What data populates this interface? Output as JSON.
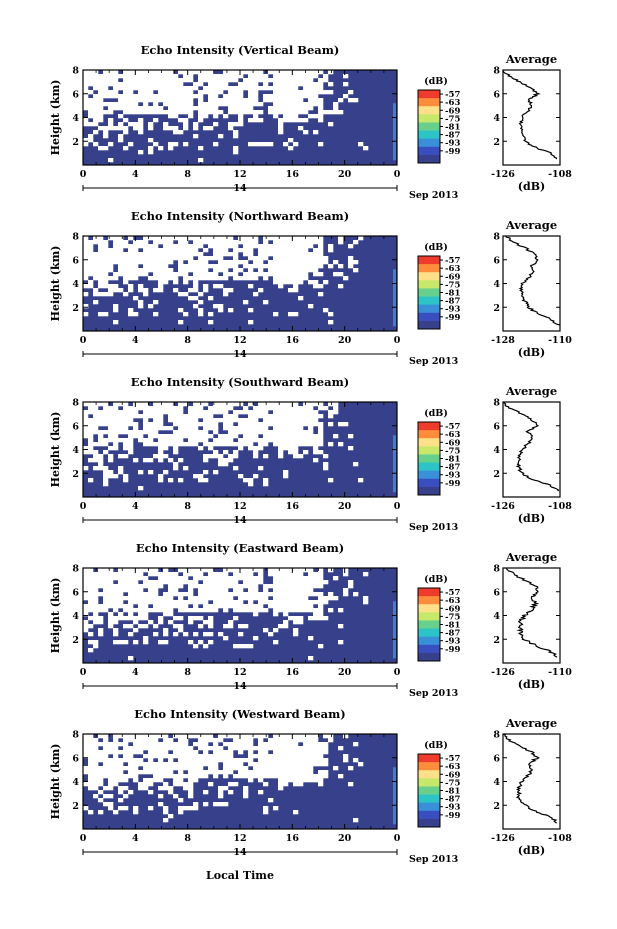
{
  "figure": {
    "x_label": "Local Time",
    "date_label": "Sep 2013",
    "day_label": "14",
    "y_label": "Height (km)",
    "avg_title": "Average",
    "avg_unit": "(dB)",
    "cbar_unit": "(dB)",
    "cbar_ticks": [
      "-57",
      "-63",
      "-69",
      "-75",
      "-81",
      "-87",
      "-93",
      "-99"
    ]
  },
  "chart_data": [
    {
      "type": "heatmap",
      "title": "Echo Intensity (Vertical Beam)",
      "xlabel": "Local Time",
      "ylabel": "Height (km)",
      "x_ticks": [
        "0",
        "4",
        "8",
        "12",
        "16",
        "20",
        "0"
      ],
      "xlim": [
        0,
        24
      ],
      "y_ticks": [
        "2",
        "4",
        "6",
        "8"
      ],
      "ylim": [
        0,
        8
      ],
      "colorbar": {
        "label": "(dB)",
        "ticks": [
          -57,
          -63,
          -69,
          -75,
          -81,
          -87,
          -93,
          -99
        ],
        "range": [
          -99,
          -57
        ]
      },
      "profile": {
        "title": "Average",
        "xlabel": "(dB)",
        "x_ticks": [
          "-126",
          "-108"
        ],
        "xlim": [
          -126,
          -108
        ],
        "heights": [
          0.5,
          1.0,
          1.5,
          2.0,
          2.5,
          3.0,
          3.5,
          4.0,
          4.5,
          5.0,
          5.5,
          6.0,
          6.5,
          7.0,
          7.5,
          8.0
        ],
        "values": [
          -108.5,
          -111,
          -116,
          -119,
          -120,
          -120,
          -120.5,
          -120,
          -118,
          -117,
          -118,
          -115,
          -117,
          -121,
          -124,
          -126
        ]
      }
    },
    {
      "type": "heatmap",
      "title": "Echo Intensity (Northward Beam)",
      "xlabel": "Local Time",
      "ylabel": "Height (km)",
      "x_ticks": [
        "0",
        "4",
        "8",
        "12",
        "16",
        "20",
        "0"
      ],
      "xlim": [
        0,
        24
      ],
      "y_ticks": [
        "2",
        "4",
        "6",
        "8"
      ],
      "ylim": [
        0,
        8
      ],
      "colorbar": {
        "label": "(dB)",
        "ticks": [
          -57,
          -63,
          -69,
          -75,
          -81,
          -87,
          -93,
          -99
        ],
        "range": [
          -99,
          -57
        ]
      },
      "profile": {
        "title": "Average",
        "xlabel": "(dB)",
        "x_ticks": [
          "-128",
          "-110"
        ],
        "xlim": [
          -128,
          -110
        ],
        "heights": [
          0.5,
          1.0,
          1.5,
          2.0,
          2.5,
          3.0,
          3.5,
          4.0,
          4.5,
          5.0,
          5.5,
          6.0,
          6.5,
          7.0,
          7.5,
          8.0
        ],
        "values": [
          -110.5,
          -113,
          -117,
          -120,
          -121,
          -122,
          -122.5,
          -122,
          -120,
          -118,
          -119,
          -117,
          -118,
          -121,
          -125,
          -127
        ]
      }
    },
    {
      "type": "heatmap",
      "title": "Echo Intensity (Southward Beam)",
      "xlabel": "Local Time",
      "ylabel": "Height (km)",
      "x_ticks": [
        "0",
        "4",
        "8",
        "12",
        "16",
        "20",
        "0"
      ],
      "xlim": [
        0,
        24
      ],
      "y_ticks": [
        "2",
        "4",
        "6",
        "8"
      ],
      "ylim": [
        0,
        8
      ],
      "colorbar": {
        "label": "(dB)",
        "ticks": [
          -57,
          -63,
          -69,
          -75,
          -81,
          -87,
          -93,
          -99
        ],
        "range": [
          -99,
          -57
        ]
      },
      "profile": {
        "title": "Average",
        "xlabel": "(dB)",
        "x_ticks": [
          "-126",
          "-108"
        ],
        "xlim": [
          -126,
          -108
        ],
        "heights": [
          0.5,
          1.0,
          1.5,
          2.0,
          2.5,
          3.0,
          3.5,
          4.0,
          4.5,
          5.0,
          5.5,
          6.0,
          6.5,
          7.0,
          7.5,
          8.0
        ],
        "values": [
          -108.5,
          -111,
          -117,
          -120,
          -121,
          -121,
          -121,
          -120,
          -118,
          -117,
          -118,
          -115,
          -117,
          -120,
          -124,
          -126
        ]
      }
    },
    {
      "type": "heatmap",
      "title": "Echo Intensity (Eastward Beam)",
      "xlabel": "Local Time",
      "ylabel": "Height (km)",
      "x_ticks": [
        "0",
        "4",
        "8",
        "12",
        "16",
        "20",
        "0"
      ],
      "xlim": [
        0,
        24
      ],
      "y_ticks": [
        "2",
        "4",
        "6",
        "8"
      ],
      "ylim": [
        0,
        8
      ],
      "colorbar": {
        "label": "(dB)",
        "ticks": [
          -57,
          -63,
          -69,
          -75,
          -81,
          -87,
          -93,
          -99
        ],
        "range": [
          -99,
          -57
        ]
      },
      "profile": {
        "title": "Average",
        "xlabel": "(dB)",
        "x_ticks": [
          "-126",
          "-110"
        ],
        "xlim": [
          -126,
          -110
        ],
        "heights": [
          0.5,
          1.0,
          1.5,
          2.0,
          2.5,
          3.0,
          3.5,
          4.0,
          4.5,
          5.0,
          5.5,
          6.0,
          6.5,
          7.0,
          7.5,
          8.0
        ],
        "values": [
          -110.5,
          -113,
          -117,
          -120,
          -121,
          -121,
          -121,
          -120,
          -118,
          -117,
          -118,
          -116,
          -117,
          -120,
          -123,
          -125
        ]
      }
    },
    {
      "type": "heatmap",
      "title": "Echo Intensity (Westward Beam)",
      "xlabel": "Local Time",
      "ylabel": "Height (km)",
      "x_ticks": [
        "0",
        "4",
        "8",
        "12",
        "16",
        "20",
        "0"
      ],
      "xlim": [
        0,
        24
      ],
      "y_ticks": [
        "2",
        "4",
        "6",
        "8"
      ],
      "ylim": [
        0,
        8
      ],
      "colorbar": {
        "label": "(dB)",
        "ticks": [
          -57,
          -63,
          -69,
          -75,
          -81,
          -87,
          -93,
          -99
        ],
        "range": [
          -99,
          -57
        ]
      },
      "profile": {
        "title": "Average",
        "xlabel": "(dB)",
        "x_ticks": [
          "-126",
          "-108"
        ],
        "xlim": [
          -126,
          -108
        ],
        "heights": [
          0.5,
          1.0,
          1.5,
          2.0,
          2.5,
          3.0,
          3.5,
          4.0,
          4.5,
          5.0,
          5.5,
          6.0,
          6.5,
          7.0,
          7.5,
          8.0
        ],
        "values": [
          -108.5,
          -111,
          -116,
          -119,
          -121,
          -121,
          -121,
          -120,
          -118,
          -117,
          -118,
          -115,
          -117,
          -121,
          -124,
          -126
        ]
      }
    }
  ]
}
